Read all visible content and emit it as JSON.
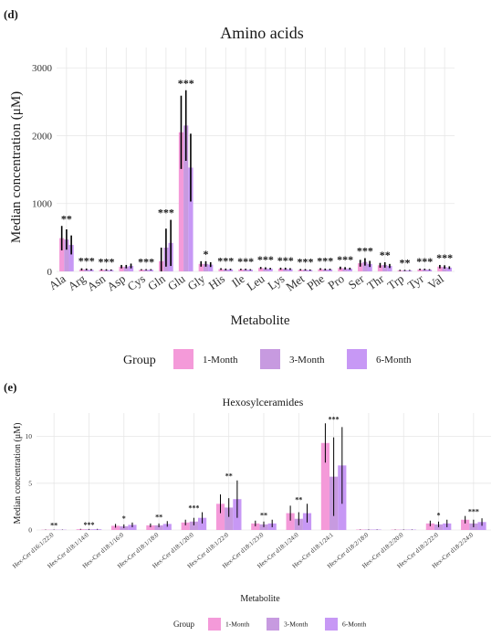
{
  "colors": {
    "1-Month": "#f49ad9",
    "3-Month": "#c79ae0",
    "6-Month": "#c798f5"
  },
  "legend": {
    "title": "Group",
    "entries": [
      "1-Month",
      "3-Month",
      "6-Month"
    ]
  },
  "chart_data": [
    {
      "panel_label": "(d)",
      "type": "bar",
      "title": "Amino acids",
      "xlabel": "Metabolite",
      "ylabel": "Median concentration (μM)",
      "ylim": [
        0,
        3300
      ],
      "yticks": [
        0,
        1000,
        2000,
        3000
      ],
      "grid": true,
      "legend_position": "bottom",
      "categories": [
        "Ala",
        "Arg",
        "Asn",
        "Asp",
        "Cys",
        "Gln",
        "Glu",
        "Gly",
        "His",
        "Ile",
        "Leu",
        "Lys",
        "Met",
        "Phe",
        "Pro",
        "Ser",
        "Thr",
        "Trp",
        "Tyr",
        "Val"
      ],
      "significance": [
        "**",
        "***",
        "***",
        "",
        "***",
        "***",
        "***",
        "*",
        "***",
        "***",
        "***",
        "***",
        "***",
        "***",
        "***",
        "***",
        "**",
        "**",
        "***",
        "***"
      ],
      "series": [
        {
          "name": "1-Month",
          "values": [
            490,
            30,
            25,
            70,
            25,
            150,
            2050,
            110,
            35,
            30,
            50,
            40,
            25,
            35,
            50,
            120,
            90,
            15,
            30,
            70
          ],
          "errors": [
            180,
            15,
            10,
            25,
            8,
            200,
            540,
            40,
            12,
            10,
            15,
            15,
            10,
            12,
            20,
            50,
            35,
            8,
            10,
            25
          ]
        },
        {
          "name": "3-Month",
          "values": [
            470,
            30,
            22,
            70,
            25,
            350,
            2150,
            110,
            30,
            30,
            45,
            40,
            25,
            30,
            45,
            140,
            95,
            15,
            30,
            65
          ],
          "errors": [
            150,
            12,
            10,
            25,
            8,
            280,
            520,
            40,
            12,
            10,
            15,
            15,
            10,
            12,
            18,
            55,
            40,
            8,
            10,
            25
          ]
        },
        {
          "name": "6-Month",
          "values": [
            390,
            25,
            20,
            80,
            25,
            420,
            1530,
            100,
            30,
            25,
            40,
            35,
            20,
            30,
            40,
            110,
            80,
            15,
            25,
            55
          ],
          "errors": [
            140,
            10,
            8,
            35,
            8,
            340,
            500,
            35,
            10,
            8,
            12,
            12,
            8,
            10,
            15,
            45,
            30,
            6,
            8,
            20
          ]
        }
      ]
    },
    {
      "panel_label": "(e)",
      "type": "bar",
      "title": "Hexosylceramides",
      "xlabel": "Metabolite",
      "ylabel": "Median concentration (μM)",
      "ylim": [
        0,
        12.5
      ],
      "yticks": [
        0,
        5,
        10
      ],
      "grid": true,
      "legend_position": "bottom",
      "categories": [
        "Hex-Cer d16:1/22:0",
        "Hex-Cer d18:1/14:0",
        "Hex-Cer d18:1/16:0",
        "Hex-Cer d18:1/18:0",
        "Hex-Cer d18:1/20:0",
        "Hex-Cer d18:1/22:0",
        "Hex-Cer d18:1/23:0",
        "Hex-Cer d18:1/24:0",
        "Hex-Cer d18:1/24:1",
        "Hex-Cer d18:2/18:0",
        "Hex-Cer d18:2/20:0",
        "Hex-Cer d18:2/22:0",
        "Hex-Cer d18:2/24:0"
      ],
      "significance": [
        "**",
        "***",
        "*",
        "**",
        "***",
        "**",
        "**",
        "**",
        "***",
        "",
        "",
        "*",
        "***"
      ],
      "series": [
        {
          "name": "1-Month",
          "values": [
            0.03,
            0.08,
            0.45,
            0.5,
            0.8,
            2.8,
            0.7,
            1.8,
            9.3,
            0.05,
            0.04,
            0.7,
            1.1
          ],
          "errors": [
            0.02,
            0.04,
            0.2,
            0.2,
            0.3,
            1.0,
            0.3,
            0.8,
            2.1,
            0.02,
            0.02,
            0.3,
            0.4
          ]
        },
        {
          "name": "3-Month",
          "values": [
            0.03,
            0.07,
            0.4,
            0.5,
            0.9,
            2.4,
            0.6,
            1.2,
            5.7,
            0.05,
            0.04,
            0.6,
            0.7
          ],
          "errors": [
            0.02,
            0.04,
            0.2,
            0.2,
            0.4,
            1.0,
            0.3,
            0.7,
            4.2,
            0.02,
            0.02,
            0.3,
            0.4
          ]
        },
        {
          "name": "6-Month",
          "values": [
            0.03,
            0.08,
            0.55,
            0.65,
            1.3,
            3.3,
            0.7,
            1.8,
            6.9,
            0.05,
            0.04,
            0.7,
            0.85
          ],
          "errors": [
            0.02,
            0.04,
            0.25,
            0.3,
            0.6,
            2.0,
            0.4,
            1.0,
            4.1,
            0.02,
            0.02,
            0.4,
            0.4
          ]
        }
      ]
    }
  ]
}
